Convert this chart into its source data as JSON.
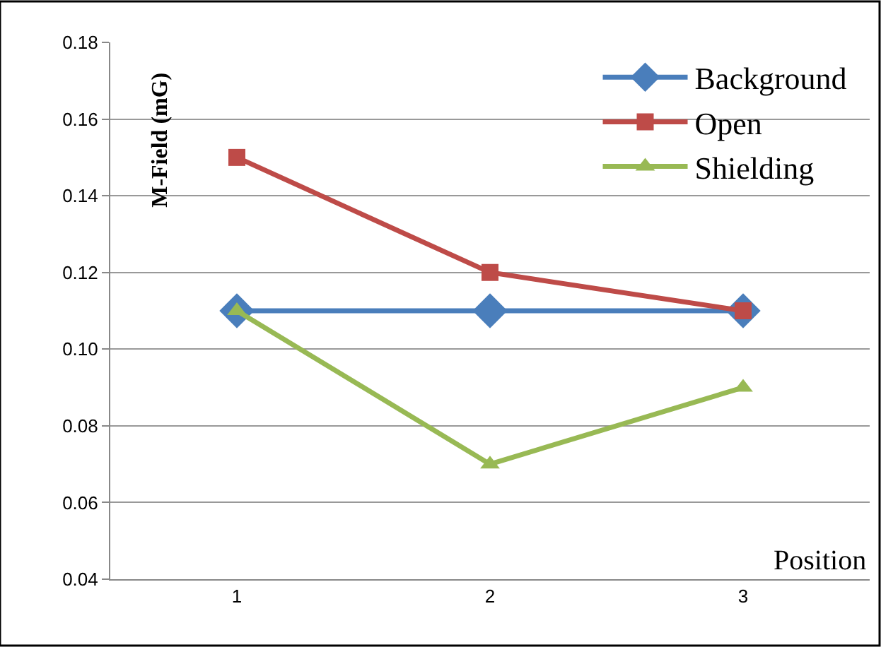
{
  "chart_data": {
    "type": "line",
    "categories": [
      "1",
      "2",
      "3"
    ],
    "xlabel": "Position",
    "ylabel": "M-Field (mG)",
    "ylim": [
      0.04,
      0.18
    ],
    "yticks": [
      0.04,
      0.06,
      0.08,
      {
        "value": 0.1,
        "label": "0.10"
      },
      0.12,
      0.14,
      0.16,
      0.18
    ],
    "grid": "y",
    "legend": "top right",
    "series": [
      {
        "name": "Background",
        "color": "#4a7ebb",
        "marker": "diamond",
        "values": [
          0.11,
          0.11,
          0.11
        ]
      },
      {
        "name": "Open",
        "color": "#be4b48",
        "marker": "square",
        "values": [
          0.15,
          0.12,
          0.11
        ]
      },
      {
        "name": "Shielding",
        "color": "#98b954",
        "marker": "triangle",
        "values": [
          0.11,
          0.07,
          0.09
        ]
      }
    ]
  }
}
